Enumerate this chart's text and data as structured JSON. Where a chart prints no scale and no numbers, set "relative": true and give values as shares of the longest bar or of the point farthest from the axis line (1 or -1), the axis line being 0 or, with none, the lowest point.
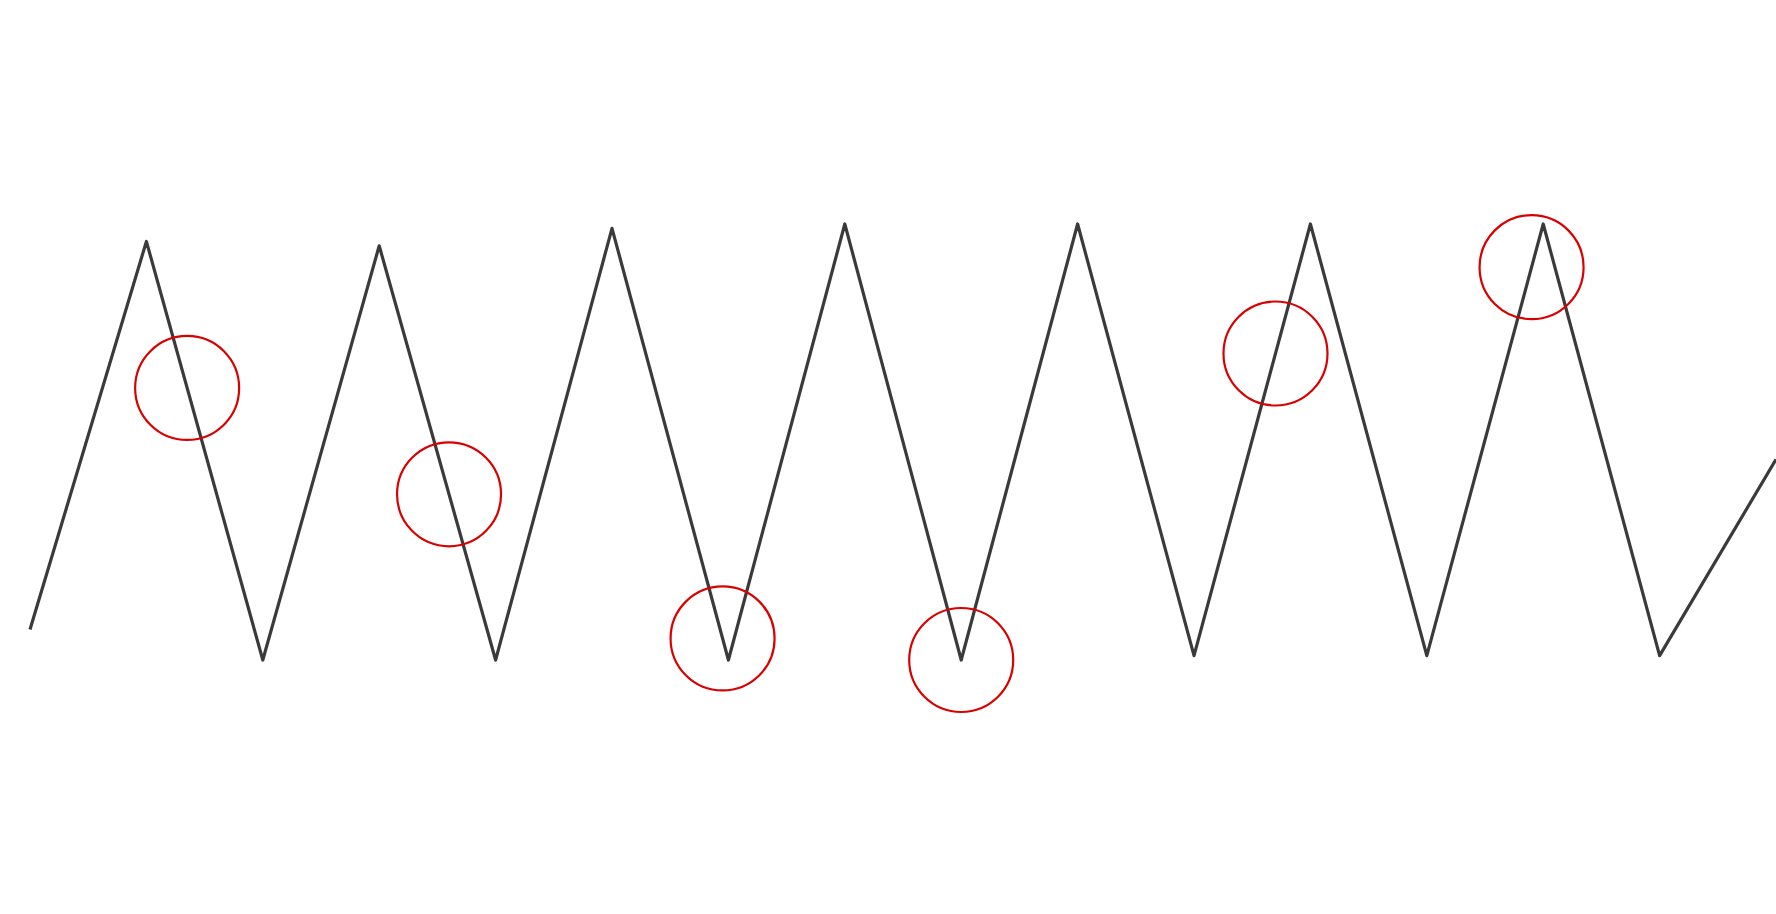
{
  "chart_data": {
    "type": "line",
    "relative": true,
    "categories": [
      null,
      null,
      null,
      null,
      null,
      null,
      null,
      null,
      null,
      null,
      null,
      null,
      null,
      null,
      null,
      null
    ],
    "series": [
      {
        "color": "#3a3a3a",
        "values": [
          0.07,
          0.96,
          0,
          0.95,
          0,
          0.99,
          0,
          1,
          0,
          1,
          0.01,
          1,
          0.01,
          1,
          0.01,
          0.46
        ]
      }
    ]
  }
}
